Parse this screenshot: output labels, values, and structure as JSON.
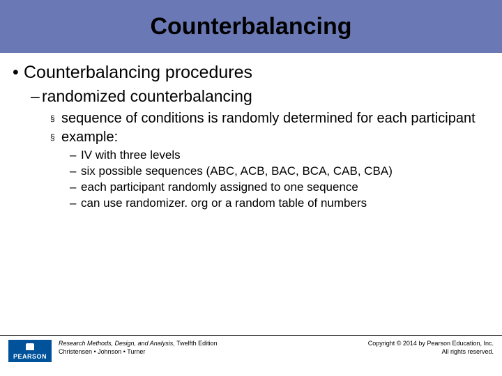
{
  "title": "Counterbalancing",
  "level1": {
    "bullet": "•",
    "text": "Counterbalancing procedures"
  },
  "level2": {
    "bullet": "–",
    "text": "randomized counterbalancing"
  },
  "level3": [
    {
      "bullet": "§",
      "text": "sequence of conditions is randomly determined for each participant"
    },
    {
      "bullet": "§",
      "text": "example:"
    }
  ],
  "level4": [
    {
      "bullet": "–",
      "text": "IV with three levels"
    },
    {
      "bullet": "–",
      "text": "six possible sequences (ABC, ACB, BAC, BCA, CAB, CBA)"
    },
    {
      "bullet": "–",
      "text": "each participant randomly assigned to one sequence"
    },
    {
      "bullet": "–",
      "text": "can use randomizer. org or a random table of numbers"
    }
  ],
  "footer": {
    "logo_text": "PEARSON",
    "book_title": "Research Methods, Design, and Analysis",
    "edition_suffix": ", Twelfth Edition",
    "authors": "Christensen  •  Johnson  •  Turner",
    "copyright_line1": "Copyright © 2014 by Pearson Education, Inc.",
    "copyright_line2": "All rights reserved."
  },
  "colors": {
    "band": "#6a79b5",
    "logo": "#00529b",
    "text": "#000000",
    "bg": "#ffffff"
  }
}
